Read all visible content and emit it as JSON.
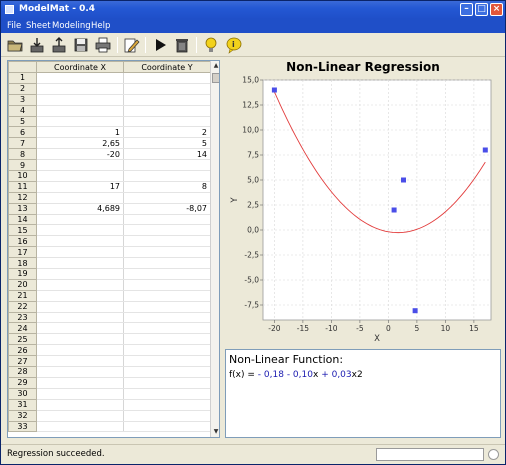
{
  "window": {
    "title": "ModelMat - 0.4"
  },
  "menu": [
    "File",
    "Sheet",
    "Modeling",
    "Help"
  ],
  "toolbar": {
    "icons": [
      "open-folder-icon",
      "import-icon",
      "export-icon",
      "save-icon",
      "print-icon",
      "edit-icon",
      "run-icon",
      "delete-icon",
      "idea-icon",
      "help-icon"
    ]
  },
  "sheet": {
    "columns": [
      "Coordinate X",
      "Coordinate Y"
    ],
    "rows": [
      {
        "n": "1",
        "x": "",
        "y": ""
      },
      {
        "n": "2",
        "x": "",
        "y": ""
      },
      {
        "n": "3",
        "x": "",
        "y": ""
      },
      {
        "n": "4",
        "x": "",
        "y": ""
      },
      {
        "n": "5",
        "x": "",
        "y": ""
      },
      {
        "n": "6",
        "x": "1",
        "y": "2"
      },
      {
        "n": "7",
        "x": "2,65",
        "y": "5"
      },
      {
        "n": "8",
        "x": "-20",
        "y": "14"
      },
      {
        "n": "9",
        "x": "",
        "y": ""
      },
      {
        "n": "10",
        "x": "",
        "y": ""
      },
      {
        "n": "11",
        "x": "17",
        "y": "8"
      },
      {
        "n": "12",
        "x": "",
        "y": ""
      },
      {
        "n": "13",
        "x": "4,689",
        "y": "-8,07"
      },
      {
        "n": "14",
        "x": "",
        "y": ""
      },
      {
        "n": "15",
        "x": "",
        "y": ""
      },
      {
        "n": "16",
        "x": "",
        "y": ""
      },
      {
        "n": "17",
        "x": "",
        "y": ""
      },
      {
        "n": "18",
        "x": "",
        "y": ""
      },
      {
        "n": "19",
        "x": "",
        "y": ""
      },
      {
        "n": "20",
        "x": "",
        "y": ""
      },
      {
        "n": "21",
        "x": "",
        "y": ""
      },
      {
        "n": "22",
        "x": "",
        "y": ""
      },
      {
        "n": "23",
        "x": "",
        "y": ""
      },
      {
        "n": "24",
        "x": "",
        "y": ""
      },
      {
        "n": "25",
        "x": "",
        "y": ""
      },
      {
        "n": "26",
        "x": "",
        "y": ""
      },
      {
        "n": "27",
        "x": "",
        "y": ""
      },
      {
        "n": "28",
        "x": "",
        "y": ""
      },
      {
        "n": "29",
        "x": "",
        "y": ""
      },
      {
        "n": "30",
        "x": "",
        "y": ""
      },
      {
        "n": "31",
        "x": "",
        "y": ""
      },
      {
        "n": "32",
        "x": "",
        "y": ""
      },
      {
        "n": "33",
        "x": "",
        "y": ""
      }
    ]
  },
  "chart_data": {
    "type": "scatter",
    "title": "Non-Linear Regression",
    "xlabel": "X",
    "ylabel": "Y",
    "xlim": [
      -22,
      18
    ],
    "ylim": [
      -9,
      15
    ],
    "xticks": [
      -20,
      -15,
      -10,
      -5,
      0,
      5,
      10,
      15
    ],
    "yticks": [
      15.0,
      12.5,
      10.0,
      7.5,
      5.0,
      2.5,
      0.0,
      -2.5,
      -5.0,
      -7.5
    ],
    "ytick_labels": [
      "15,0",
      "12,5",
      "10,0",
      "7,5",
      "5,0",
      "2,5",
      "0,0",
      "-2,5",
      "-5,0",
      "-7,5"
    ],
    "grid": true,
    "points": [
      {
        "x": 1,
        "y": 2
      },
      {
        "x": 2.65,
        "y": 5
      },
      {
        "x": -20,
        "y": 14
      },
      {
        "x": 17,
        "y": 8
      },
      {
        "x": 4.689,
        "y": -8.07
      }
    ],
    "curve": {
      "c0": -0.18,
      "c1": -0.1,
      "c2": 0.03,
      "x_range": [
        -20,
        17
      ]
    },
    "colors": {
      "points": "#4a4ee8",
      "curve": "#e23b3b",
      "grid": "#d8d8d8"
    }
  },
  "function": {
    "title": "Non-Linear Function:",
    "prefix": "f(x) =",
    "terms": [
      "- 0,18",
      "- 0,10",
      "x",
      "+ 0,03",
      "x2"
    ]
  },
  "status": {
    "message": "Regression succeeded.",
    "progress": 0
  }
}
